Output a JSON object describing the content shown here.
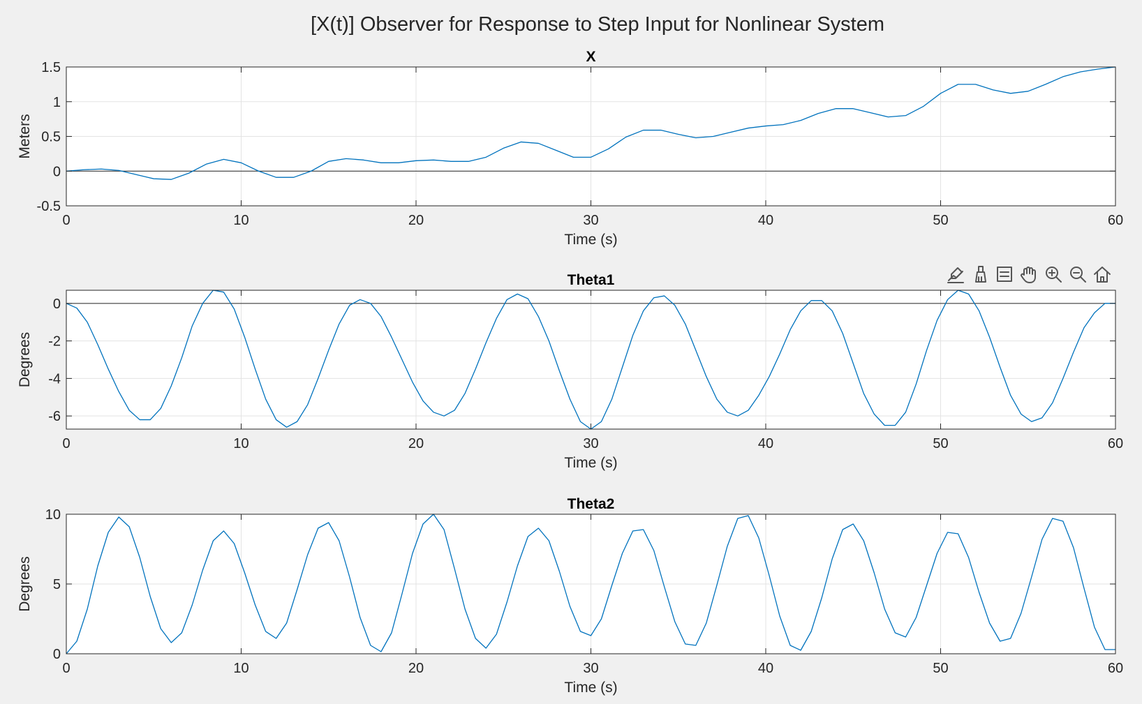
{
  "figure_title": "[X(t)] Observer for Response to Step Input for Nonlinear System",
  "colors": {
    "background": "#f0f0f0",
    "axes_background": "#ffffff",
    "line": "#0072bd",
    "grid": "#e3e3e3",
    "axis": "#262626"
  },
  "toolbar": {
    "icons": [
      "data-tips-icon",
      "brush-icon",
      "legend-icon",
      "pan-hand-icon",
      "zoom-in-icon",
      "zoom-out-icon",
      "home-icon"
    ]
  },
  "chart_data": [
    {
      "type": "line",
      "title": "X",
      "xlabel": "Time (s)",
      "ylabel": "Meters",
      "xlim": [
        0,
        60
      ],
      "ylim": [
        -0.5,
        1.5
      ],
      "xticks": [
        "0",
        "10",
        "20",
        "30",
        "40",
        "50",
        "60"
      ],
      "yticks": [
        "-0.5",
        "0",
        "0.5",
        "1",
        "1.5"
      ],
      "grid": true,
      "zero_line": true,
      "series": [
        {
          "x": [
            0,
            1,
            2,
            3,
            4,
            5,
            6,
            7,
            8,
            9,
            10,
            11,
            12,
            13,
            14,
            15,
            16,
            17,
            18,
            19,
            20,
            21,
            22,
            23,
            24,
            25,
            26,
            27,
            28,
            29,
            30,
            31,
            32,
            33,
            34,
            35,
            36,
            37,
            38,
            39,
            40,
            41,
            42,
            43,
            44,
            45,
            46,
            47,
            48,
            49,
            50,
            51,
            52,
            53,
            54,
            55,
            56,
            57,
            58,
            59,
            60
          ],
          "y": [
            0,
            0.02,
            0.03,
            0.01,
            -0.05,
            -0.11,
            -0.12,
            -0.03,
            0.1,
            0.17,
            0.12,
            0.0,
            -0.09,
            -0.09,
            0.0,
            0.14,
            0.18,
            0.16,
            0.12,
            0.12,
            0.15,
            0.16,
            0.14,
            0.14,
            0.2,
            0.33,
            0.42,
            0.4,
            0.3,
            0.2,
            0.2,
            0.32,
            0.49,
            0.59,
            0.59,
            0.53,
            0.48,
            0.5,
            0.56,
            0.62,
            0.65,
            0.67,
            0.73,
            0.83,
            0.9,
            0.9,
            0.84,
            0.78,
            0.8,
            0.93,
            1.12,
            1.25,
            1.25,
            1.17,
            1.12,
            1.15,
            1.25,
            1.36,
            1.43,
            1.47,
            1.5
          ]
        }
      ]
    },
    {
      "type": "line",
      "title": "Theta1",
      "xlabel": "Time (s)",
      "ylabel": "Degrees",
      "xlim": [
        0,
        60
      ],
      "ylim": [
        -6.7,
        0.7
      ],
      "xticks": [
        "0",
        "10",
        "20",
        "30",
        "40",
        "50",
        "60"
      ],
      "yticks": [
        "-6",
        "-4",
        "-2",
        "0"
      ],
      "grid": true,
      "zero_line": true,
      "series": [
        {
          "x": [
            0,
            0.6,
            1.2,
            1.8,
            2.4,
            3.0,
            3.6,
            4.2,
            4.8,
            5.4,
            6.0,
            6.6,
            7.2,
            7.8,
            8.4,
            9.0,
            9.6,
            10.2,
            10.8,
            11.4,
            12.0,
            12.6,
            13.2,
            13.8,
            14.4,
            15.0,
            15.6,
            16.2,
            16.8,
            17.4,
            18.0,
            18.6,
            19.2,
            19.8,
            20.4,
            21.0,
            21.6,
            22.2,
            22.8,
            23.4,
            24.0,
            24.6,
            25.2,
            25.8,
            26.4,
            27.0,
            27.6,
            28.2,
            28.8,
            29.4,
            30.0,
            30.6,
            31.2,
            31.8,
            32.4,
            33.0,
            33.6,
            34.2,
            34.8,
            35.4,
            36.0,
            36.6,
            37.2,
            37.8,
            38.4,
            39.0,
            39.6,
            40.2,
            40.8,
            41.4,
            42.0,
            42.6,
            43.2,
            43.8,
            44.4,
            45.0,
            45.6,
            46.2,
            46.8,
            47.4,
            48.0,
            48.6,
            49.2,
            49.8,
            50.4,
            51.0,
            51.6,
            52.2,
            52.8,
            53.4,
            54.0,
            54.6,
            55.2,
            55.8,
            56.4,
            57.0,
            57.6,
            58.2,
            58.8,
            59.4,
            60.0
          ],
          "y": [
            0,
            -0.25,
            -1.0,
            -2.2,
            -3.5,
            -4.7,
            -5.7,
            -6.2,
            -6.2,
            -5.6,
            -4.4,
            -2.9,
            -1.2,
            0.0,
            0.7,
            0.6,
            -0.3,
            -1.8,
            -3.5,
            -5.1,
            -6.2,
            -6.6,
            -6.3,
            -5.4,
            -4.0,
            -2.5,
            -1.1,
            -0.1,
            0.2,
            0.0,
            -0.7,
            -1.8,
            -3.0,
            -4.2,
            -5.2,
            -5.8,
            -6.0,
            -5.7,
            -4.8,
            -3.5,
            -2.1,
            -0.8,
            0.2,
            0.5,
            0.25,
            -0.7,
            -2.0,
            -3.6,
            -5.1,
            -6.3,
            -6.7,
            -6.3,
            -5.1,
            -3.4,
            -1.7,
            -0.4,
            0.3,
            0.4,
            -0.1,
            -1.1,
            -2.5,
            -3.9,
            -5.1,
            -5.8,
            -6.0,
            -5.7,
            -4.9,
            -3.9,
            -2.7,
            -1.4,
            -0.4,
            0.15,
            0.15,
            -0.4,
            -1.6,
            -3.2,
            -4.8,
            -5.9,
            -6.5,
            -6.5,
            -5.8,
            -4.3,
            -2.5,
            -0.9,
            0.2,
            0.7,
            0.5,
            -0.4,
            -1.8,
            -3.4,
            -4.9,
            -5.9,
            -6.3,
            -6.1,
            -5.3,
            -4.0,
            -2.6,
            -1.3,
            -0.5,
            0.0,
            0.0
          ]
        }
      ]
    },
    {
      "type": "line",
      "title": "Theta2",
      "xlabel": "Time (s)",
      "ylabel": "Degrees",
      "xlim": [
        0,
        60
      ],
      "ylim": [
        0,
        10
      ],
      "xticks": [
        "0",
        "10",
        "20",
        "30",
        "40",
        "50",
        "60"
      ],
      "yticks": [
        "0",
        "5",
        "10"
      ],
      "grid": true,
      "zero_line": false,
      "series": [
        {
          "x": [
            0,
            0.6,
            1.2,
            1.8,
            2.4,
            3.0,
            3.6,
            4.2,
            4.8,
            5.4,
            6.0,
            6.6,
            7.2,
            7.8,
            8.4,
            9.0,
            9.6,
            10.2,
            10.8,
            11.4,
            12.0,
            12.6,
            13.2,
            13.8,
            14.4,
            15.0,
            15.6,
            16.2,
            16.8,
            17.4,
            18.0,
            18.6,
            19.2,
            19.8,
            20.4,
            21.0,
            21.6,
            22.2,
            22.8,
            23.4,
            24.0,
            24.6,
            25.2,
            25.8,
            26.4,
            27.0,
            27.6,
            28.2,
            28.8,
            29.4,
            30.0,
            30.6,
            31.2,
            31.8,
            32.4,
            33.0,
            33.6,
            34.2,
            34.8,
            35.4,
            36.0,
            36.6,
            37.2,
            37.8,
            38.4,
            39.0,
            39.6,
            40.2,
            40.8,
            41.4,
            42.0,
            42.6,
            43.2,
            43.8,
            44.4,
            45.0,
            45.6,
            46.2,
            46.8,
            47.4,
            48.0,
            48.6,
            49.2,
            49.8,
            50.4,
            51.0,
            51.6,
            52.2,
            52.8,
            53.4,
            54.0,
            54.6,
            55.2,
            55.8,
            56.4,
            57.0,
            57.6,
            58.2,
            58.8,
            59.4,
            60.0
          ],
          "y": [
            0,
            0.9,
            3.2,
            6.3,
            8.7,
            9.8,
            9.1,
            6.9,
            4.1,
            1.8,
            0.8,
            1.5,
            3.5,
            6.0,
            8.1,
            8.8,
            7.9,
            5.8,
            3.5,
            1.6,
            1.1,
            2.2,
            4.6,
            7.1,
            9.0,
            9.4,
            8.1,
            5.5,
            2.6,
            0.6,
            0.15,
            1.5,
            4.3,
            7.2,
            9.3,
            10.0,
            8.9,
            6.1,
            3.2,
            1.1,
            0.4,
            1.4,
            3.7,
            6.3,
            8.4,
            9.0,
            8.1,
            5.9,
            3.4,
            1.6,
            1.3,
            2.5,
            4.9,
            7.2,
            8.8,
            8.9,
            7.4,
            4.8,
            2.3,
            0.7,
            0.6,
            2.2,
            4.9,
            7.7,
            9.7,
            9.9,
            8.3,
            5.6,
            2.7,
            0.6,
            0.25,
            1.6,
            4.0,
            6.8,
            8.9,
            9.3,
            8.1,
            5.8,
            3.2,
            1.5,
            1.2,
            2.6,
            4.9,
            7.2,
            8.7,
            8.6,
            6.9,
            4.4,
            2.2,
            0.9,
            1.1,
            2.9,
            5.5,
            8.2,
            9.7,
            9.5,
            7.6,
            4.7,
            1.9,
            0.3,
            0.3
          ]
        }
      ]
    }
  ]
}
